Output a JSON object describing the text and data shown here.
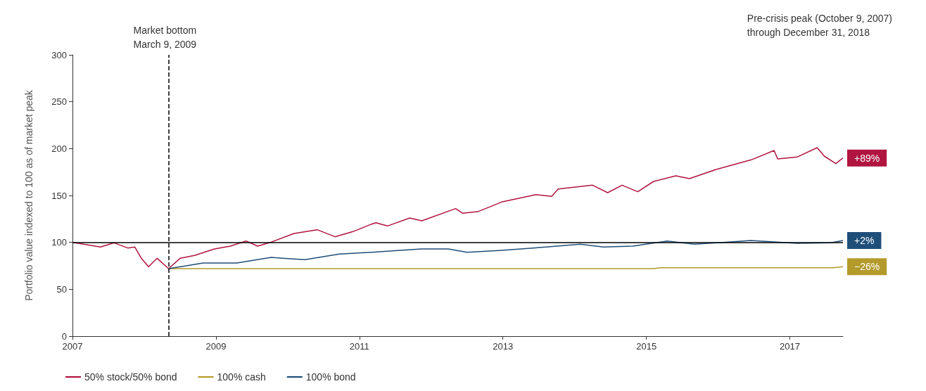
{
  "chart_data": {
    "type": "line",
    "ylabel": "Portfolio value indexed to 100 as of market peak",
    "xlim": [
      2007,
      2017.74
    ],
    "xticks": [
      2007,
      2009,
      2011,
      2013,
      2015,
      2017
    ],
    "ylim": [
      0,
      300
    ],
    "yticks": [
      0,
      50,
      100,
      150,
      200,
      250,
      300
    ],
    "grid": false,
    "legend": "bottom",
    "marker": "none",
    "line_style": "solid",
    "annotations": [
      "Pre-crisis peak (October 9, 2007)\nthrough December 31, 2018",
      "+89%",
      "−26%",
      "+2%"
    ],
    "ref_lines": [
      {
        "axis": "x",
        "value": 2008.34,
        "label": "Market bottom\nMarch 9, 2009",
        "line_style": "dashed",
        "color": "#000000"
      },
      {
        "axis": "y",
        "value": 100,
        "label": null,
        "line_style": "solid",
        "color": "#000000"
      }
    ],
    "series": [
      {
        "name": "50% stock/50% bond",
        "color": "#b0153f",
        "x": [
          2007.01,
          2007.39,
          2007.58,
          2007.77,
          2007.87,
          2007.96,
          2008.06,
          2008.18,
          2008.34,
          2008.5,
          2008.7,
          2008.98,
          2009.2,
          2009.42,
          2009.58,
          2009.74,
          2010.09,
          2010.41,
          2010.66,
          2010.91,
          2011.17,
          2011.23,
          2011.39,
          2011.7,
          2011.87,
          2012.34,
          2012.44,
          2012.66,
          2012.98,
          2013.46,
          2013.68,
          2013.77,
          2014.25,
          2014.46,
          2014.66,
          2014.88,
          2015.1,
          2015.41,
          2015.6,
          2015.98,
          2016.46,
          2016.78,
          2016.83,
          2017.1,
          2017.38,
          2017.48,
          2017.64,
          2017.74
        ],
        "values": [
          100,
          95,
          99.5,
          94,
          95,
          83,
          74,
          83,
          72,
          83,
          86,
          93,
          96,
          101.5,
          96,
          99.5,
          109.5,
          113.5,
          106,
          111.5,
          119.5,
          121,
          117.5,
          126,
          123,
          136,
          131,
          133,
          143,
          151,
          149,
          157,
          161,
          153,
          161,
          154,
          165,
          171,
          168,
          178,
          188,
          198,
          189,
          191,
          201,
          192,
          184,
          190
        ]
      },
      {
        "name": "100% cash",
        "color": "#b39a2b",
        "x": [
          2008.34,
          2015.1,
          2015.2,
          2017.6,
          2017.74
        ],
        "values": [
          72,
          72,
          73,
          73,
          74
        ]
      },
      {
        "name": "100% bond",
        "color": "#1f4e79",
        "x": [
          2008.34,
          2008.82,
          2009.29,
          2009.77,
          2009.93,
          2010.24,
          2010.72,
          2011.17,
          2011.86,
          2012.24,
          2012.5,
          2012.98,
          2013.6,
          2014.08,
          2014.4,
          2014.81,
          2015.16,
          2015.29,
          2015.67,
          2016.46,
          2017.1,
          2017.57,
          2017.74
        ],
        "values": [
          72,
          78,
          78,
          84,
          83,
          81.5,
          87.5,
          89.5,
          93,
          93,
          89.5,
          91.5,
          95,
          98,
          95,
          96,
          100,
          101.5,
          98,
          102,
          99,
          99.5,
          102
        ]
      }
    ]
  }
}
